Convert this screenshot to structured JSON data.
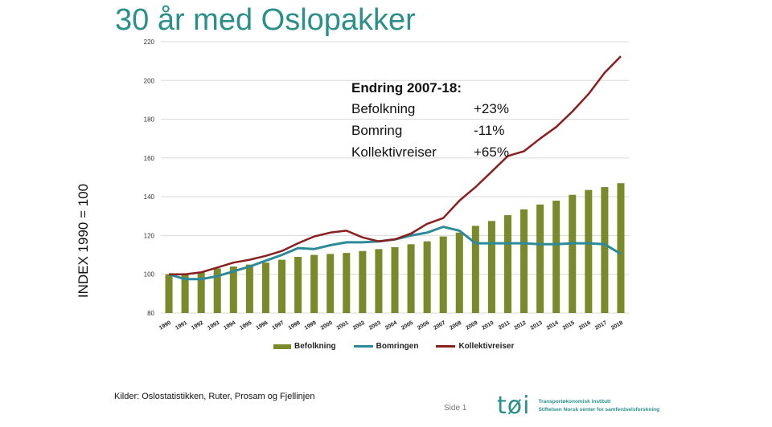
{
  "title": "30 år med Oslopakker",
  "chart_data": {
    "type": "bar",
    "ylabel": "INDEX 1990 = 100",
    "ylim": [
      80,
      220
    ],
    "yticks": [
      80,
      100,
      120,
      140,
      160,
      180,
      200,
      220
    ],
    "grid": true,
    "legend_position": "bottom",
    "categories": [
      "1990",
      "1991",
      "1992",
      "1993",
      "1994",
      "1995",
      "1996",
      "1997",
      "1998",
      "1999",
      "2000",
      "2001",
      "2002",
      "2003",
      "2004",
      "2005",
      "2006",
      "2007",
      "2008",
      "2009",
      "2010",
      "2011",
      "2012",
      "2013",
      "2014",
      "2015",
      "2016",
      "2017",
      "2018"
    ],
    "series": [
      {
        "name": "Befolkning",
        "type": "bar",
        "color": "#7a8a2a",
        "values": [
          100,
          100,
          101,
          103,
          104,
          105,
          106,
          107.5,
          109,
          110,
          110.5,
          111,
          112,
          113,
          114,
          115.5,
          117,
          119.5,
          121.5,
          125,
          127.5,
          130.5,
          133.5,
          136,
          138,
          141,
          143.5,
          145,
          147
        ]
      },
      {
        "name": "Bomringen",
        "type": "line",
        "color": "#2d8a9a",
        "values": [
          100,
          97.5,
          97.5,
          99,
          101.5,
          104,
          107,
          110,
          113.5,
          113,
          115,
          116.5,
          116.5,
          117,
          118,
          120,
          121.5,
          124.5,
          122.5,
          116,
          116,
          116,
          116,
          115.5,
          115.5,
          116,
          116,
          115.5,
          110.5
        ]
      },
      {
        "name": "Kollektivreiser",
        "type": "line",
        "color": "#8a1f1f",
        "values": [
          100,
          100,
          101,
          103.5,
          106,
          107.5,
          109.5,
          112,
          116,
          119.5,
          121.5,
          122.5,
          119,
          117,
          118,
          121,
          126,
          129,
          138,
          145,
          153,
          161,
          163.5,
          170,
          176,
          184,
          193,
          204,
          212.5
        ]
      }
    ]
  },
  "callout": {
    "heading": "Endring 2007-18:",
    "rows": [
      {
        "label": "Befolkning",
        "value": "+23%"
      },
      {
        "label": "Bomring",
        "value": "-11%"
      },
      {
        "label": "Kollektivreiser",
        "value": "+65%"
      }
    ]
  },
  "sources": "Kilder: Oslostatistikken, Ruter, Prosam og Fjellinjen",
  "page_number": "Side 1",
  "logo": {
    "mark": "tøi",
    "line1": "Transportøkonomisk institutt",
    "line2": "Stiftelsen Norsk senter for samferdselsforskning"
  },
  "colors": {
    "title": "#2b8f8a",
    "grid": "#d9d9d9"
  }
}
